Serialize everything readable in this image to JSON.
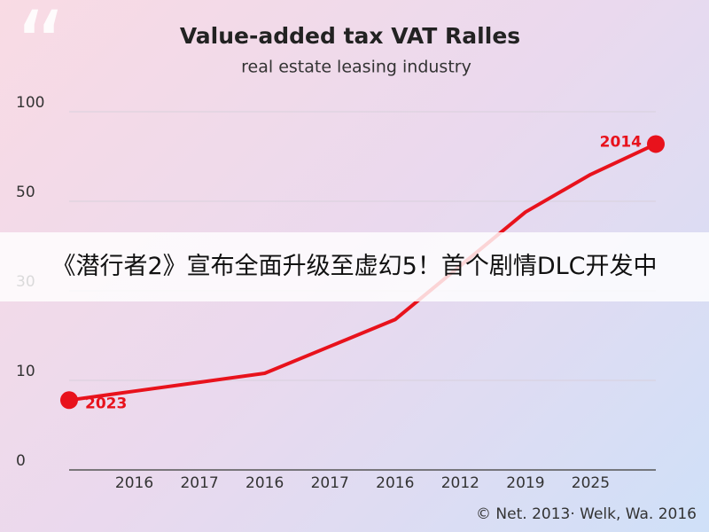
{
  "chart_data": {
    "type": "line",
    "title": "Value-added tax VAT Ralles",
    "subtitle": "real estate leasing industry",
    "categories": [
      null,
      "2016",
      "2017",
      "2016",
      "2017",
      "2016",
      "2012",
      "2019",
      "2025",
      null
    ],
    "series": [
      {
        "name": "VAT",
        "color": "#e8121c",
        "values": [
          7,
          8,
          9,
          10,
          16,
          22,
          34,
          46,
          61,
          78
        ]
      }
    ],
    "ylim": [
      0,
      100
    ],
    "yticks": [
      0,
      10,
      30,
      50,
      100
    ],
    "grid": true,
    "annotations": [
      "2023",
      "2014"
    ],
    "footer": "© Net. 2013· Welk, Wa. 2016"
  },
  "banner": "《潜行者2》宣布全面升级至虚幻5！首个剧情DLC开发中"
}
